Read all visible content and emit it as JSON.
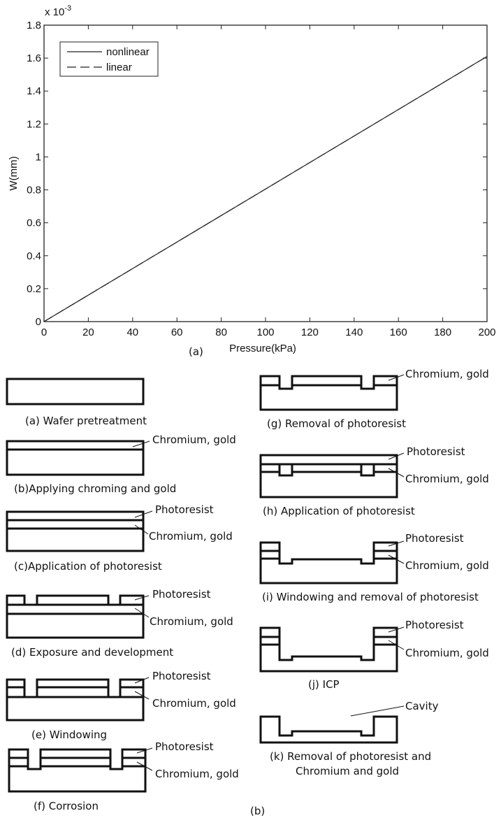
{
  "chart_data": {
    "type": "line",
    "xlabel": "Pressure(kPa)",
    "ylabel": "W(mm)",
    "y_multiplier": "x 10",
    "y_multiplier_exponent": "-3",
    "xlim": [
      0,
      200
    ],
    "ylim": [
      0,
      1.8
    ],
    "x_ticks": [
      "0",
      "20",
      "40",
      "60",
      "80",
      "100",
      "120",
      "140",
      "160",
      "180",
      "200"
    ],
    "y_ticks": [
      "0",
      "0.2",
      "0.4",
      "0.6",
      "0.8",
      "1",
      "1.2",
      "1.4",
      "1.6",
      "1.8"
    ],
    "grid": false,
    "legend_position": "top-left",
    "series": [
      {
        "name": "nonlinear",
        "style": "solid",
        "x": [
          0,
          200
        ],
        "y": [
          0,
          1.61
        ]
      },
      {
        "name": "linear",
        "style": "dashed",
        "x": [
          0,
          200
        ],
        "y": [
          0,
          1.61
        ]
      }
    ],
    "panel_label": "(a)"
  },
  "diagram": {
    "panel_label": "(b)",
    "steps": [
      {
        "caption": "(a) Wafer pretreatment"
      },
      {
        "caption": "(b)Applying chroming and gold",
        "labels": [
          "Chromium, gold"
        ]
      },
      {
        "caption": "(c)Application of photoresist",
        "labels": [
          "Photoresist",
          "Chromium, gold"
        ]
      },
      {
        "caption": "(d) Exposure and development",
        "labels": [
          "Photoresist",
          "Chromium, gold"
        ]
      },
      {
        "caption": "(e) Windowing",
        "labels": [
          "Photoresist",
          "Chromium, gold"
        ]
      },
      {
        "caption": "(f) Corrosion",
        "labels": [
          "Photoresist",
          "Chromium, gold"
        ]
      },
      {
        "caption": "(g) Removal of photoresist",
        "labels": [
          "Chromium, gold"
        ]
      },
      {
        "caption": "(h) Application of photoresist",
        "labels": [
          "Photoresist",
          "Chromium, gold"
        ]
      },
      {
        "caption": "(i) Windowing and removal of photoresist",
        "labels": [
          "Photoresist",
          "Chromium, gold"
        ]
      },
      {
        "caption": "(j) ICP",
        "labels": [
          "Photoresist",
          "Chromium, gold"
        ]
      },
      {
        "caption": "(k) Removal of photoresist and",
        "caption2": "Chromium and gold",
        "labels": [
          "Cavity"
        ]
      }
    ]
  }
}
